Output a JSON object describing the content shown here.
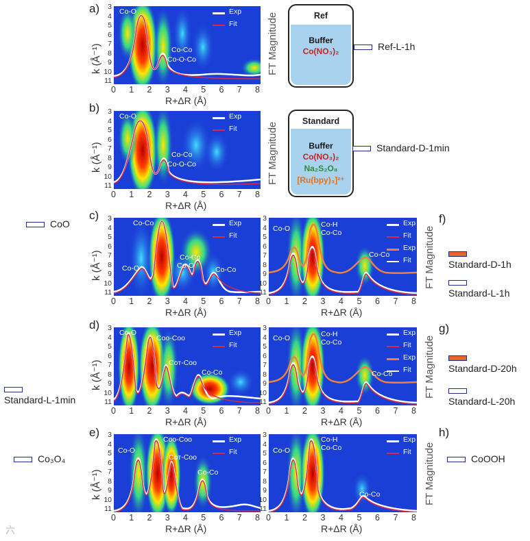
{
  "axis": {
    "y_ticks": [
      "3",
      "4",
      "5",
      "6",
      "7",
      "8",
      "9",
      "10",
      "11"
    ],
    "x_ticks": [
      "0",
      "1",
      "2",
      "3",
      "4",
      "5",
      "6",
      "7",
      "8"
    ],
    "xlabel": "R+ΔR (Å)",
    "ylabel": "k (Å⁻¹)",
    "ft_label": "FT Magnitude"
  },
  "panels": [
    {
      "id": "a",
      "label": "a)",
      "legend": [
        "Exp",
        "Fit"
      ],
      "annotations": [
        "Co-O",
        "Co-Co",
        "Co-O-Co"
      ]
    },
    {
      "id": "b",
      "label": "b)",
      "legend": [
        "Exp",
        "Fit"
      ],
      "annotations": [
        "Co-O",
        "Co-Co",
        "Co-O-Co"
      ]
    },
    {
      "id": "c",
      "label": "c)",
      "legend": [
        "Exp",
        "Fit"
      ],
      "annotations": [
        "Co-Co",
        "Co-Co",
        "Co-O",
        "Co-O",
        "Co-Co"
      ]
    },
    {
      "id": "d",
      "label": "d)",
      "legend": [
        "Exp",
        "Fit"
      ],
      "annotations": [
        "Co-O",
        "Coo-Coo",
        "Coт-Coo",
        "Co-Co"
      ]
    },
    {
      "id": "e",
      "label": "e)",
      "legend": [
        "Exp",
        "Fit"
      ],
      "annotations": [
        "Co-O",
        "Coo-Coo",
        "Coт-Coo",
        "Co-Co"
      ]
    },
    {
      "id": "f",
      "label": "f)",
      "legend": [
        "Exp",
        "Fit",
        "Exp",
        "Fit"
      ],
      "annotations": [
        "Co-O",
        "Co-H",
        "Co-Co",
        "Co-Co"
      ]
    },
    {
      "id": "g",
      "label": "g)",
      "legend": [
        "Exp",
        "Fit",
        "Exp",
        "Fit"
      ],
      "annotations": [
        "Co-O",
        "Co-H",
        "Co-Co",
        "Co-Co"
      ]
    },
    {
      "id": "h",
      "label": "h)",
      "legend": [
        "Exp",
        "Fit"
      ],
      "annotations": [
        "Co-O",
        "Co-H",
        "Co-Co",
        "Co-Co"
      ]
    }
  ],
  "boxes": {
    "ref": {
      "title": "Ref",
      "lines": [
        "Buffer",
        "Co(NO₃)₂"
      ]
    },
    "standard": {
      "title": "Standard",
      "lines": [
        "Buffer",
        "Co(NO₃)₂",
        "Na₂S₂O₈",
        "[Ru(bpy)₃]²⁺"
      ]
    }
  },
  "legend_labels": {
    "ref_l_1h": "Ref-L-1h",
    "standard_d_1min": "Standard-D-1min",
    "coo": "CoO",
    "standard_d_1h": "Standard-D-1h",
    "standard_l_1h": "Standard-L-1h",
    "standard_d_20h": "Standard-D-20h",
    "standard_l_20h": "Standard-L-20h",
    "standard_l_1min": "Standard-L-1min",
    "co3o4": "Co₃O₄",
    "coooh": "CoOOH"
  },
  "colors": {
    "exp": "#ffffff",
    "fit": "#d9294a",
    "exp_dark": "#f08040",
    "swatch_border": "#1c2d8c",
    "swatch_dark": "#e6652f",
    "red_text": "#cc1f1f",
    "green_text": "#2e8b3a",
    "orange_text": "#e0731c"
  },
  "watermark": "六"
}
